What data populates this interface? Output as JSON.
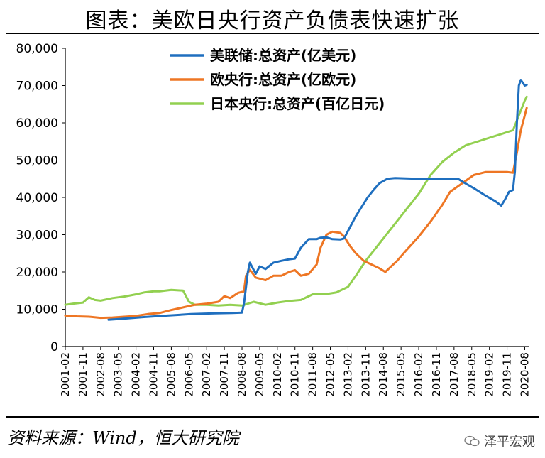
{
  "page": {
    "title": "图表：美欧日央行资产负债表快速扩张",
    "source": "资料来源：Wind，恒大研究院",
    "brand": "泽平宏观"
  },
  "colors": {
    "fed": "#1f6fbf",
    "ecb": "#ee7624",
    "boj": "#92d050"
  },
  "chart_data": {
    "type": "line",
    "title": "图表：美欧日央行资产负债表快速扩张",
    "ylim": [
      0,
      80000
    ],
    "yticks": [
      0,
      10000,
      20000,
      30000,
      40000,
      50000,
      60000,
      70000,
      80000
    ],
    "ytick_labels": [
      "0",
      "10,000",
      "20,000",
      "30,000",
      "40,000",
      "50,000",
      "60,000",
      "70,000",
      "80,000"
    ],
    "xlim": [
      "2001-02",
      "2020-10"
    ],
    "xtick_labels": [
      "2001-02",
      "2001-11",
      "2002-08",
      "2003-05",
      "2004-02",
      "2004-11",
      "2005-08",
      "2006-05",
      "2007-02",
      "2007-11",
      "2008-08",
      "2009-05",
      "2010-02",
      "2010-11",
      "2011-08",
      "2012-05",
      "2013-02",
      "2013-11",
      "2014-08",
      "2015-05",
      "2016-02",
      "2016-11",
      "2017-08",
      "2018-05",
      "2019-02",
      "2019-11",
      "2020-08"
    ],
    "legend_position": "top-center",
    "grid": false,
    "series": [
      {
        "name": "美联储:总资产(亿美元)",
        "color": "#1f6fbf",
        "points": [
          [
            "2002-12",
            7200
          ],
          [
            "2003-06",
            7400
          ],
          [
            "2004-06",
            7900
          ],
          [
            "2005-06",
            8300
          ],
          [
            "2006-06",
            8700
          ],
          [
            "2007-06",
            8900
          ],
          [
            "2008-03",
            9000
          ],
          [
            "2008-08",
            9100
          ],
          [
            "2008-09",
            11500
          ],
          [
            "2008-11",
            20000
          ],
          [
            "2008-12",
            22500
          ],
          [
            "2009-03",
            19500
          ],
          [
            "2009-05",
            21500
          ],
          [
            "2009-08",
            20800
          ],
          [
            "2009-12",
            22500
          ],
          [
            "2010-04",
            23000
          ],
          [
            "2010-08",
            23400
          ],
          [
            "2010-11",
            23600
          ],
          [
            "2011-02",
            26500
          ],
          [
            "2011-06",
            28800
          ],
          [
            "2011-10",
            28800
          ],
          [
            "2011-12",
            29200
          ],
          [
            "2012-03",
            29300
          ],
          [
            "2012-06",
            28800
          ],
          [
            "2012-10",
            28700
          ],
          [
            "2012-12",
            29000
          ],
          [
            "2013-03",
            32000
          ],
          [
            "2013-06",
            35000
          ],
          [
            "2013-09",
            37500
          ],
          [
            "2013-12",
            40000
          ],
          [
            "2014-03",
            42000
          ],
          [
            "2014-06",
            43800
          ],
          [
            "2014-10",
            45000
          ],
          [
            "2015-02",
            45200
          ],
          [
            "2016-01",
            45000
          ],
          [
            "2017-01",
            45000
          ],
          [
            "2017-10",
            45000
          ],
          [
            "2018-01",
            44000
          ],
          [
            "2018-06",
            42500
          ],
          [
            "2018-12",
            40500
          ],
          [
            "2019-05",
            39000
          ],
          [
            "2019-08",
            37800
          ],
          [
            "2019-10",
            39500
          ],
          [
            "2019-12",
            41500
          ],
          [
            "2020-02",
            42000
          ],
          [
            "2020-03",
            47000
          ],
          [
            "2020-04",
            60000
          ],
          [
            "2020-05",
            70000
          ],
          [
            "2020-06",
            71500
          ],
          [
            "2020-08",
            70000
          ],
          [
            "2020-09",
            70200
          ]
        ]
      },
      {
        "name": "欧央行:总资产(亿欧元)",
        "color": "#ee7624",
        "points": [
          [
            "2001-02",
            8300
          ],
          [
            "2001-08",
            8100
          ],
          [
            "2002-02",
            8000
          ],
          [
            "2002-08",
            7700
          ],
          [
            "2003-02",
            7800
          ],
          [
            "2003-08",
            8000
          ],
          [
            "2004-02",
            8200
          ],
          [
            "2004-08",
            8700
          ],
          [
            "2005-02",
            9000
          ],
          [
            "2005-08",
            9800
          ],
          [
            "2006-02",
            10500
          ],
          [
            "2006-08",
            11200
          ],
          [
            "2007-02",
            11500
          ],
          [
            "2007-08",
            12000
          ],
          [
            "2007-11",
            13500
          ],
          [
            "2008-02",
            13000
          ],
          [
            "2008-06",
            14400
          ],
          [
            "2008-09",
            14800
          ],
          [
            "2008-10",
            19000
          ],
          [
            "2008-12",
            20600
          ],
          [
            "2009-03",
            18500
          ],
          [
            "2009-08",
            17800
          ],
          [
            "2009-12",
            19000
          ],
          [
            "2010-04",
            19000
          ],
          [
            "2010-08",
            20000
          ],
          [
            "2010-11",
            20500
          ],
          [
            "2011-02",
            19000
          ],
          [
            "2011-06",
            19500
          ],
          [
            "2011-10",
            22000
          ],
          [
            "2011-12",
            26500
          ],
          [
            "2012-03",
            30000
          ],
          [
            "2012-06",
            30800
          ],
          [
            "2012-10",
            30500
          ],
          [
            "2012-12",
            29500
          ],
          [
            "2013-03",
            27000
          ],
          [
            "2013-06",
            25000
          ],
          [
            "2013-10",
            23000
          ],
          [
            "2014-02",
            22000
          ],
          [
            "2014-06",
            21000
          ],
          [
            "2014-09",
            20000
          ],
          [
            "2014-12",
            21500
          ],
          [
            "2015-03",
            23000
          ],
          [
            "2015-08",
            26000
          ],
          [
            "2016-02",
            29500
          ],
          [
            "2016-08",
            33500
          ],
          [
            "2017-02",
            38000
          ],
          [
            "2017-06",
            41500
          ],
          [
            "2017-10",
            43000
          ],
          [
            "2018-02",
            44500
          ],
          [
            "2018-06",
            46000
          ],
          [
            "2018-12",
            46800
          ],
          [
            "2019-06",
            46800
          ],
          [
            "2019-11",
            46800
          ],
          [
            "2020-02",
            46600
          ],
          [
            "2020-04",
            52000
          ],
          [
            "2020-06",
            58000
          ],
          [
            "2020-08",
            62000
          ],
          [
            "2020-09",
            64000
          ]
        ]
      },
      {
        "name": "日本央行:总资产(百亿日元)",
        "color": "#92d050",
        "points": [
          [
            "2001-02",
            11200
          ],
          [
            "2001-06",
            11500
          ],
          [
            "2001-11",
            11800
          ],
          [
            "2002-02",
            13200
          ],
          [
            "2002-05",
            12500
          ],
          [
            "2002-08",
            12300
          ],
          [
            "2003-02",
            13000
          ],
          [
            "2003-05",
            13200
          ],
          [
            "2003-08",
            13400
          ],
          [
            "2004-02",
            14000
          ],
          [
            "2004-06",
            14500
          ],
          [
            "2004-11",
            14800
          ],
          [
            "2005-02",
            14800
          ],
          [
            "2005-08",
            15200
          ],
          [
            "2006-02",
            15000
          ],
          [
            "2006-05",
            12000
          ],
          [
            "2006-08",
            11200
          ],
          [
            "2007-02",
            11200
          ],
          [
            "2007-08",
            11000
          ],
          [
            "2008-02",
            11200
          ],
          [
            "2008-08",
            11000
          ],
          [
            "2009-02",
            12000
          ],
          [
            "2009-08",
            11200
          ],
          [
            "2010-02",
            11800
          ],
          [
            "2010-08",
            12200
          ],
          [
            "2011-02",
            12500
          ],
          [
            "2011-08",
            14000
          ],
          [
            "2012-02",
            14000
          ],
          [
            "2012-08",
            14500
          ],
          [
            "2013-02",
            16000
          ],
          [
            "2013-06",
            19000
          ],
          [
            "2013-11",
            23000
          ],
          [
            "2014-02",
            25000
          ],
          [
            "2014-08",
            29000
          ],
          [
            "2015-02",
            33000
          ],
          [
            "2015-08",
            37000
          ],
          [
            "2016-02",
            41000
          ],
          [
            "2016-08",
            46000
          ],
          [
            "2017-02",
            49500
          ],
          [
            "2017-08",
            52000
          ],
          [
            "2018-02",
            54000
          ],
          [
            "2018-08",
            55000
          ],
          [
            "2019-02",
            56000
          ],
          [
            "2019-08",
            57000
          ],
          [
            "2019-11",
            57500
          ],
          [
            "2020-02",
            58000
          ],
          [
            "2020-05",
            62000
          ],
          [
            "2020-08",
            66000
          ],
          [
            "2020-09",
            67000
          ]
        ]
      }
    ]
  }
}
